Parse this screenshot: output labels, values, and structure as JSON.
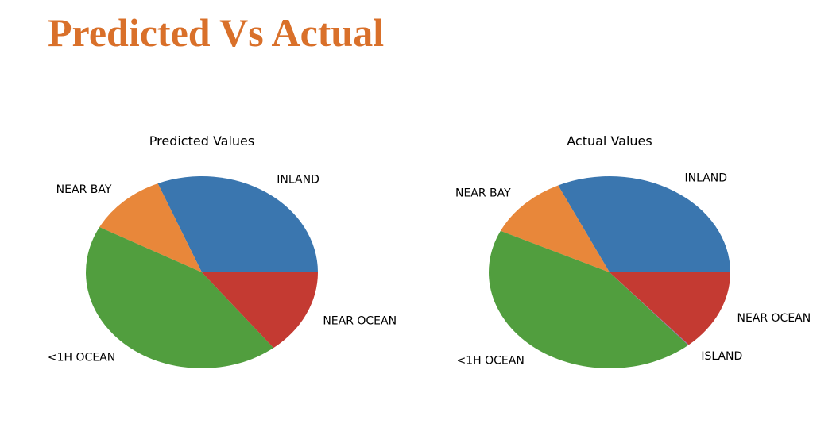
{
  "page": {
    "title": "Predicted Vs Actual",
    "title_color": "#d9702a"
  },
  "chart_data": [
    {
      "type": "pie",
      "title": "Predicted Values",
      "start_angle": 0,
      "direction": "counterclockwise",
      "slices": [
        {
          "label": "INLAND",
          "value": 31.2,
          "color": "#3a76af"
        },
        {
          "label": "NEAR BAY",
          "value": 11.0,
          "color": "#e8873a"
        },
        {
          "label": "<1H OCEAN",
          "value": 43.4,
          "color": "#519e3e"
        },
        {
          "label": "NEAR OCEAN",
          "value": 14.4,
          "color": "#c43a32"
        }
      ]
    },
    {
      "type": "pie",
      "title": "Actual Values",
      "start_angle": 0,
      "direction": "counterclockwise",
      "slices": [
        {
          "label": "INLAND",
          "value": 32.0,
          "color": "#3a76af"
        },
        {
          "label": "NEAR BAY",
          "value": 10.9,
          "color": "#e8873a"
        },
        {
          "label": "<1H OCEAN",
          "value": 43.4,
          "color": "#519e3e"
        },
        {
          "label": "ISLAND",
          "value": 0.1,
          "color": "#8c6bb1"
        },
        {
          "label": "NEAR OCEAN",
          "value": 13.6,
          "color": "#c43a32"
        }
      ]
    }
  ]
}
